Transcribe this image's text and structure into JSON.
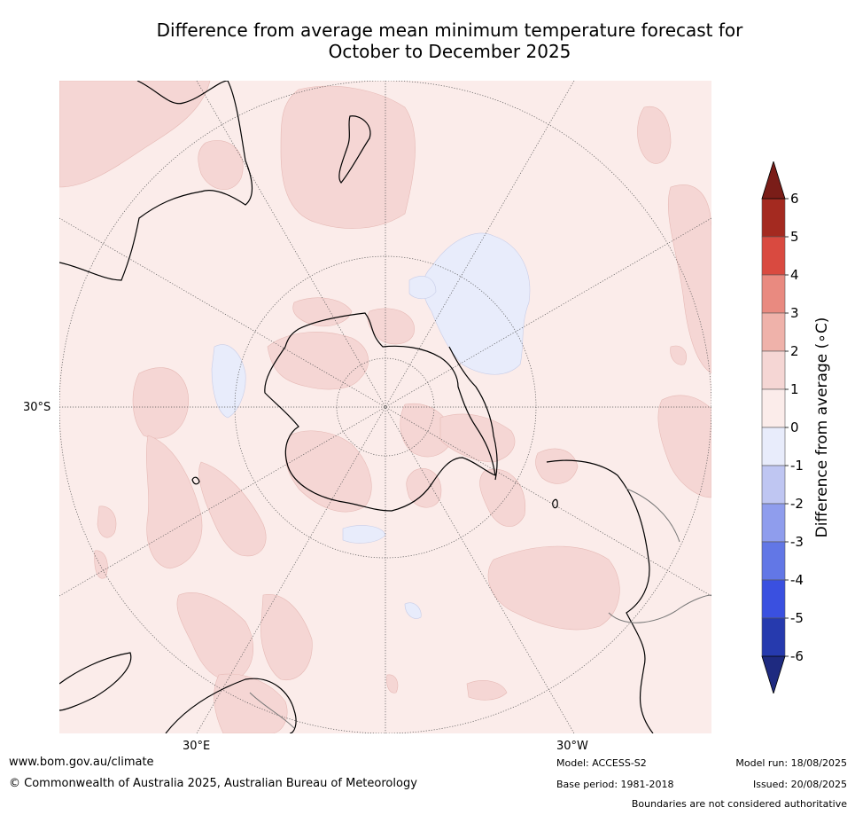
{
  "title_line1": "Difference from average mean minimum temperature forecast for",
  "title_line2": "October to December 2025",
  "map_labels": {
    "lat_30s": "30°S",
    "lon_30e": "30°E",
    "lon_30w": "30°W"
  },
  "colorbar": {
    "title": "Difference from average (∘C)",
    "ticks": [
      "6",
      "5",
      "4",
      "3",
      "2",
      "1",
      "0",
      "-1",
      "-2",
      "-3",
      "-4",
      "-5",
      "-6"
    ],
    "bins": [
      {
        "range": "5 to 6",
        "color": "#a42a20"
      },
      {
        "range": "4 to 5",
        "color": "#d94a40"
      },
      {
        "range": "3 to 4",
        "color": "#e98a80"
      },
      {
        "range": "2 to 3",
        "color": "#efb2aa"
      },
      {
        "range": "1 to 2",
        "color": "#f5d6d4"
      },
      {
        "range": "0 to 1",
        "color": "#fbecea"
      },
      {
        "range": "-1 to 0",
        "color": "#e8ecfb"
      },
      {
        "range": "-2 to -1",
        "color": "#bfc6f2"
      },
      {
        "range": "-3 to -2",
        "color": "#8f9ded"
      },
      {
        "range": "-4 to -3",
        "color": "#6277e6"
      },
      {
        "range": "-5 to -4",
        "color": "#3a50e0"
      },
      {
        "range": "-6 to -5",
        "color": "#263aae"
      }
    ],
    "over_color": "#7a1d18",
    "under_color": "#1e2a80"
  },
  "map_colors": {
    "background": "#fbecea",
    "warm": "#f5d6d4",
    "cool": "#e8ecfb"
  },
  "footer": {
    "url": "www.bom.gov.au/climate",
    "copyright": "© Commonwealth of Australia 2025, Australian Bureau of Meteorology",
    "model": "Model: ACCESS-S2",
    "base_period": "Base period: 1981-2018",
    "model_run": "Model run: 18/08/2025",
    "issued": "Issued: 20/08/2025",
    "disclaimer": "Boundaries are not considered authoritative"
  }
}
